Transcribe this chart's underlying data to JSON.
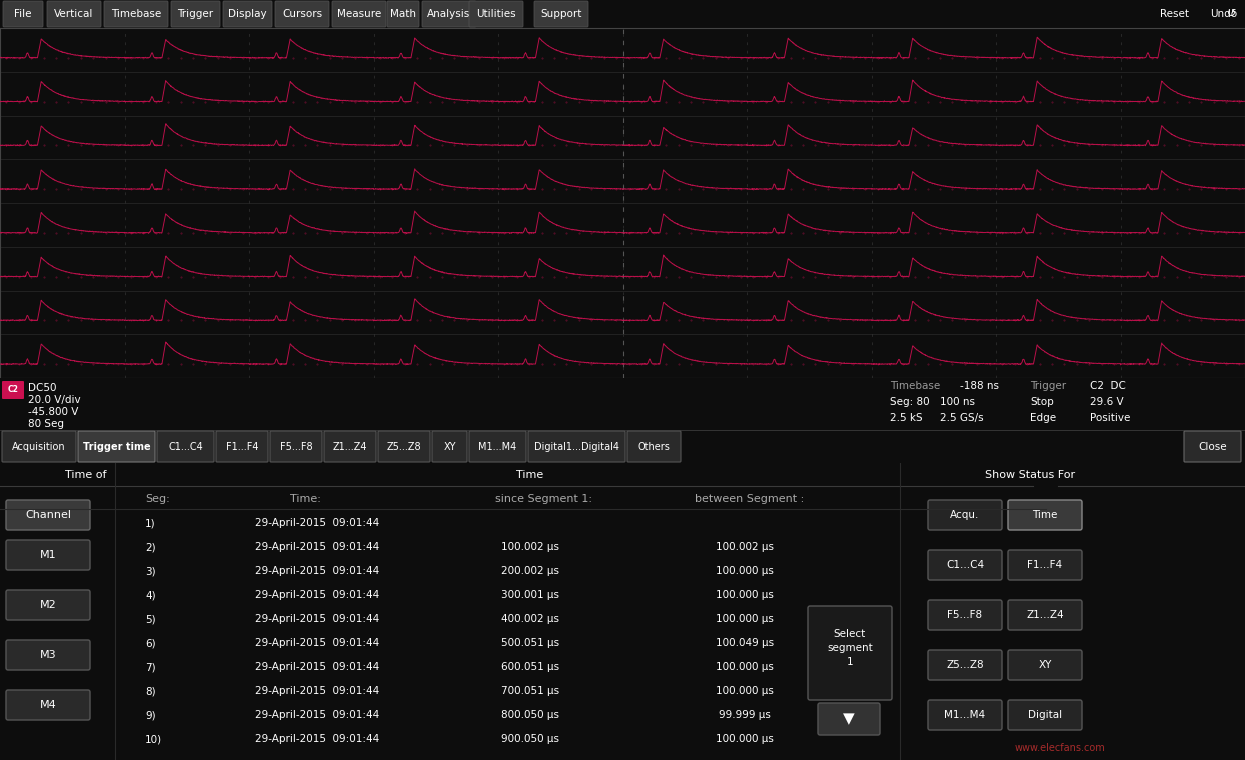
{
  "bg_color": "#0d0d0d",
  "toolbar_bg": "#252525",
  "osc_bg": "#000000",
  "status_bg": "#0d0d0d",
  "panel_bg": "#111111",
  "signal_color": "#cc1050",
  "grid_color": "#2a2a2a",
  "rows": 8,
  "cols": 10,
  "toolbar_items": [
    "File",
    "Vertical",
    "Timebase",
    "Trigger",
    "Display",
    "Cursors",
    "Measure",
    "Math",
    "Analysis",
    "Utilities",
    "Support"
  ],
  "tab_items": [
    "Acquisition",
    "Trigger time",
    "C1...C4",
    "F1...F4",
    "F5...F8",
    "Z1...Z4",
    "Z5...Z8",
    "XY",
    "M1...M4",
    "Digital1...Digital4",
    "Others"
  ],
  "active_tab": "Trigger time",
  "status_left": [
    "C2",
    "DC50",
    "20.0 V/div",
    "-45.800 V",
    "80 Seg"
  ],
  "rows_data": [
    [
      "1)",
      "29-April-2015  09:01:44",
      "",
      ""
    ],
    [
      "2)",
      "29-April-2015  09:01:44",
      "100.002 μs",
      "100.002 μs"
    ],
    [
      "3)",
      "29-April-2015  09:01:44",
      "200.002 μs",
      "100.000 μs"
    ],
    [
      "4)",
      "29-April-2015  09:01:44",
      "300.001 μs",
      "100.000 μs"
    ],
    [
      "5)",
      "29-April-2015  09:01:44",
      "400.002 μs",
      "100.000 μs"
    ],
    [
      "6)",
      "29-April-2015  09:01:44",
      "500.051 μs",
      "100.049 μs"
    ],
    [
      "7)",
      "29-April-2015  09:01:44",
      "600.051 μs",
      "100.000 μs"
    ],
    [
      "8)",
      "29-April-2015  09:01:44",
      "700.051 μs",
      "100.000 μs"
    ],
    [
      "9)",
      "29-April-2015  09:01:44",
      "800.050 μs",
      "99.999 μs"
    ],
    [
      "10)",
      "29-April-2015  09:01:44",
      "900.050 μs",
      "100.000 μs"
    ]
  ],
  "watermark": "www.elecfans.com",
  "show_status_buttons": [
    [
      "Acqu.",
      "Time"
    ],
    [
      "C1...C4",
      "F1...F4"
    ],
    [
      "F5...F8",
      "Z1...Z4"
    ],
    [
      "Z5...Z8",
      "XY"
    ],
    [
      "M1...M4",
      "Digital"
    ]
  ],
  "select_segment_label": "Select\nsegment\n1"
}
